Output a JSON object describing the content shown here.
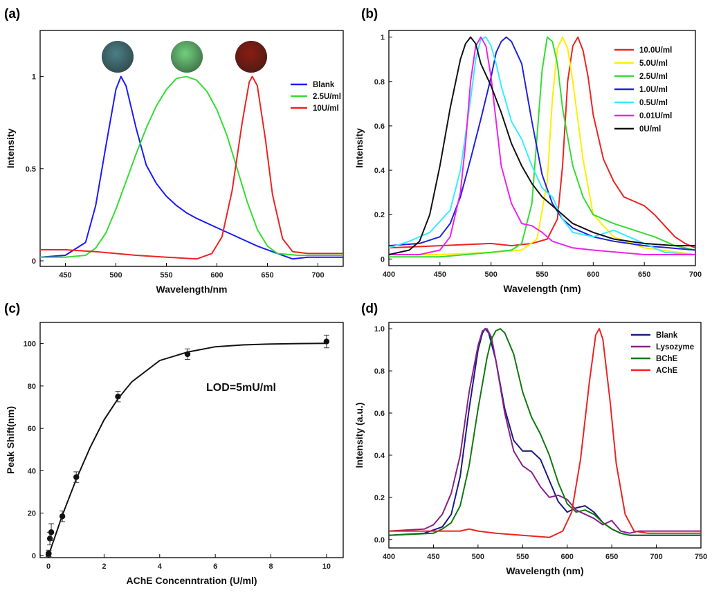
{
  "chart_data": [
    {
      "panel": "(a)",
      "type": "line",
      "xlabel": "Wavelength/nm",
      "ylabel": "Intensity",
      "xlim": [
        425,
        725
      ],
      "ylim": [
        -0.03,
        1.25
      ],
      "xticks": [
        450,
        500,
        550,
        600,
        650,
        700
      ],
      "yticks": [
        0,
        0.5,
        1
      ],
      "ytick_labels": [
        "0",
        "0.5",
        "1"
      ],
      "legend_position": "upper-right",
      "insets": [
        {
          "description": "photo of dark teal sample",
          "color": "#4a7f86"
        },
        {
          "description": "photo of green sample",
          "color": "#6fd07c"
        },
        {
          "description": "photo of dark red sample",
          "color": "#8a1c12"
        }
      ],
      "series": [
        {
          "name": "Blank",
          "color": "#1a1aff",
          "x": [
            425,
            450,
            470,
            480,
            490,
            500,
            505,
            510,
            520,
            530,
            540,
            550,
            560,
            570,
            580,
            600,
            620,
            640,
            660,
            675,
            690,
            710,
            725
          ],
          "y": [
            0.02,
            0.03,
            0.1,
            0.3,
            0.62,
            0.93,
            1.0,
            0.95,
            0.72,
            0.52,
            0.42,
            0.35,
            0.3,
            0.26,
            0.23,
            0.18,
            0.13,
            0.08,
            0.04,
            0.01,
            0.02,
            0.02,
            0.02
          ]
        },
        {
          "name": "2.5U/ml",
          "color": "#33dd33",
          "x": [
            425,
            450,
            470,
            480,
            490,
            500,
            510,
            520,
            530,
            540,
            550,
            560,
            570,
            580,
            590,
            600,
            610,
            620,
            630,
            640,
            650,
            660,
            680,
            700,
            725
          ],
          "y": [
            0.02,
            0.02,
            0.03,
            0.07,
            0.15,
            0.28,
            0.43,
            0.58,
            0.72,
            0.84,
            0.93,
            0.99,
            1.0,
            0.98,
            0.92,
            0.82,
            0.68,
            0.5,
            0.32,
            0.17,
            0.08,
            0.04,
            0.03,
            0.03,
            0.03
          ]
        },
        {
          "name": "10U/ml",
          "color": "#ee2222",
          "x": [
            425,
            450,
            480,
            500,
            520,
            550,
            580,
            595,
            605,
            615,
            625,
            632,
            635,
            640,
            648,
            655,
            665,
            675,
            690,
            710,
            725
          ],
          "y": [
            0.06,
            0.06,
            0.05,
            0.04,
            0.03,
            0.02,
            0.01,
            0.04,
            0.13,
            0.38,
            0.75,
            0.97,
            1.0,
            0.95,
            0.66,
            0.36,
            0.12,
            0.05,
            0.04,
            0.04,
            0.04
          ]
        }
      ]
    },
    {
      "panel": "(b)",
      "type": "line",
      "xlabel": "Wavelength (nm)",
      "ylabel": "Intensity",
      "xlim": [
        400,
        700
      ],
      "ylim": [
        -0.03,
        1.03
      ],
      "xticks": [
        400,
        450,
        500,
        550,
        600,
        650,
        700
      ],
      "yticks": [
        0,
        0.2,
        0.4,
        0.6,
        0.8,
        1
      ],
      "ytick_labels": [
        "0",
        "0.2",
        "0.4",
        "0.6",
        "0.8",
        "1"
      ],
      "legend_position": "upper-right",
      "series": [
        {
          "name": "10.0U/ml",
          "color": "#ee2222",
          "x": [
            400,
            450,
            500,
            520,
            540,
            555,
            565,
            570,
            575,
            580,
            585,
            590,
            595,
            600,
            610,
            620,
            630,
            640,
            650,
            660,
            670,
            680,
            690,
            700
          ],
          "y": [
            0.05,
            0.06,
            0.07,
            0.06,
            0.07,
            0.09,
            0.18,
            0.42,
            0.8,
            0.96,
            1.0,
            0.94,
            0.82,
            0.65,
            0.45,
            0.35,
            0.28,
            0.26,
            0.24,
            0.2,
            0.15,
            0.1,
            0.07,
            0.05
          ]
        },
        {
          "name": "5.0U/ml",
          "color": "#ffee00",
          "x": [
            400,
            450,
            500,
            530,
            545,
            555,
            560,
            565,
            570,
            575,
            580,
            590,
            600,
            620,
            650,
            700
          ],
          "y": [
            0.02,
            0.02,
            0.03,
            0.04,
            0.09,
            0.35,
            0.72,
            0.95,
            1.0,
            0.95,
            0.8,
            0.45,
            0.2,
            0.1,
            0.05,
            0.02
          ]
        },
        {
          "name": "2.5U/ml",
          "color": "#33dd33",
          "x": [
            400,
            450,
            500,
            520,
            530,
            540,
            545,
            550,
            555,
            560,
            565,
            570,
            580,
            590,
            600,
            620,
            640,
            660,
            680,
            700
          ],
          "y": [
            0.01,
            0.01,
            0.03,
            0.04,
            0.07,
            0.25,
            0.55,
            0.85,
            1.0,
            0.98,
            0.88,
            0.68,
            0.42,
            0.28,
            0.2,
            0.16,
            0.13,
            0.1,
            0.06,
            0.04
          ]
        },
        {
          "name": "1.0U/ml",
          "color": "#2020dd",
          "x": [
            400,
            430,
            450,
            460,
            470,
            480,
            490,
            500,
            505,
            510,
            515,
            520,
            530,
            540,
            550,
            560,
            570,
            580,
            600,
            620,
            650,
            700
          ],
          "y": [
            0.06,
            0.07,
            0.1,
            0.16,
            0.28,
            0.45,
            0.63,
            0.82,
            0.93,
            0.98,
            1.0,
            0.98,
            0.88,
            0.62,
            0.38,
            0.25,
            0.18,
            0.14,
            0.1,
            0.08,
            0.06,
            0.04
          ]
        },
        {
          "name": "0.5U/ml",
          "color": "#33eeff",
          "x": [
            400,
            420,
            440,
            460,
            470,
            480,
            485,
            490,
            495,
            500,
            505,
            510,
            520,
            530,
            540,
            550,
            560,
            570,
            580,
            600,
            620,
            650,
            670,
            700
          ],
          "y": [
            0.05,
            0.08,
            0.12,
            0.22,
            0.4,
            0.72,
            0.9,
            0.99,
            1.0,
            0.96,
            0.88,
            0.78,
            0.62,
            0.54,
            0.42,
            0.32,
            0.28,
            0.18,
            0.12,
            0.1,
            0.13,
            0.07,
            0.03,
            0.02
          ]
        },
        {
          "name": "0.01U/ml",
          "color": "#ee22ee",
          "x": [
            400,
            430,
            450,
            460,
            470,
            475,
            480,
            485,
            490,
            495,
            500,
            505,
            510,
            520,
            530,
            540,
            550,
            560,
            580,
            600,
            650,
            700
          ],
          "y": [
            0.02,
            0.02,
            0.04,
            0.1,
            0.3,
            0.52,
            0.8,
            0.96,
            1.0,
            0.96,
            0.82,
            0.62,
            0.42,
            0.25,
            0.16,
            0.15,
            0.12,
            0.08,
            0.05,
            0.04,
            0.02,
            0.02
          ]
        },
        {
          "name": "0U/ml",
          "color": "#111111",
          "x": [
            400,
            420,
            430,
            440,
            450,
            460,
            470,
            475,
            480,
            485,
            490,
            500,
            510,
            520,
            530,
            540,
            550,
            560,
            570,
            580,
            600,
            620,
            650,
            680,
            700
          ],
          "y": [
            0.02,
            0.04,
            0.08,
            0.2,
            0.42,
            0.68,
            0.9,
            0.97,
            1.0,
            0.97,
            0.88,
            0.78,
            0.66,
            0.52,
            0.42,
            0.34,
            0.28,
            0.24,
            0.2,
            0.16,
            0.12,
            0.09,
            0.07,
            0.06,
            0.06
          ]
        }
      ]
    },
    {
      "panel": "(c)",
      "type": "scatter",
      "xlabel": "AChE Concenntration (U/ml)",
      "ylabel": "Peak Shift(nm)",
      "xlim": [
        -0.3,
        10.6
      ],
      "ylim": [
        -1,
        110
      ],
      "xticks": [
        0,
        2,
        4,
        6,
        8,
        10
      ],
      "yticks": [
        0,
        20,
        40,
        60,
        80,
        100
      ],
      "annotation": "LOD=5mU/ml",
      "points": {
        "x": [
          0,
          0.01,
          0.05,
          0.1,
          0.5,
          1,
          2.5,
          5,
          10
        ],
        "y": [
          0.5,
          1,
          8,
          11,
          18.5,
          37,
          75,
          95,
          101
        ],
        "err": [
          1,
          1.5,
          3,
          4,
          2.5,
          2.5,
          2.5,
          2.5,
          3
        ]
      },
      "fit": {
        "x": [
          0,
          0.5,
          1,
          1.5,
          2,
          2.5,
          3,
          4,
          5,
          6,
          7,
          8,
          9,
          10
        ],
        "y": [
          0,
          19,
          36,
          51,
          64,
          74,
          82,
          92,
          96,
          98.5,
          99.4,
          99.8,
          100,
          100.1
        ]
      }
    },
    {
      "panel": "(d)",
      "type": "line",
      "xlabel": "Wavelength (nm)",
      "ylabel": "Intensity (a.u.)",
      "xlim": [
        400,
        750
      ],
      "ylim": [
        -0.04,
        1.03
      ],
      "xticks": [
        400,
        450,
        500,
        550,
        600,
        650,
        700,
        750
      ],
      "yticks": [
        0,
        0.2,
        0.4,
        0.6,
        0.8,
        1.0
      ],
      "ytick_labels": [
        "0.0",
        "0.2",
        "0.4",
        "0.6",
        "0.8",
        "1.0"
      ],
      "legend_position": "upper-right",
      "series": [
        {
          "name": "Blank",
          "color": "#1a1a80",
          "x": [
            400,
            440,
            460,
            470,
            480,
            490,
            500,
            505,
            508,
            512,
            520,
            530,
            540,
            550,
            560,
            570,
            580,
            590,
            600,
            610,
            620,
            630,
            640,
            650,
            660,
            670,
            680,
            700,
            720,
            750
          ],
          "y": [
            0.02,
            0.03,
            0.06,
            0.12,
            0.3,
            0.62,
            0.9,
            0.98,
            1.0,
            0.98,
            0.85,
            0.62,
            0.47,
            0.42,
            0.42,
            0.38,
            0.28,
            0.18,
            0.13,
            0.15,
            0.16,
            0.13,
            0.08,
            0.05,
            0.03,
            0.02,
            0.02,
            0.02,
            0.02,
            0.02
          ]
        },
        {
          "name": "Lysozyme",
          "color": "#882288",
          "x": [
            400,
            440,
            450,
            460,
            470,
            480,
            490,
            500,
            505,
            510,
            515,
            520,
            530,
            540,
            550,
            560,
            570,
            580,
            590,
            600,
            610,
            620,
            630,
            640,
            650,
            660,
            670,
            680,
            700,
            720,
            750
          ],
          "y": [
            0.04,
            0.05,
            0.07,
            0.12,
            0.22,
            0.4,
            0.7,
            0.92,
            0.99,
            1.0,
            0.96,
            0.85,
            0.6,
            0.42,
            0.35,
            0.32,
            0.25,
            0.2,
            0.21,
            0.19,
            0.14,
            0.12,
            0.1,
            0.07,
            0.09,
            0.04,
            0.03,
            0.04,
            0.04,
            0.04,
            0.04
          ]
        },
        {
          "name": "BChE",
          "color": "#117711",
          "x": [
            400,
            450,
            460,
            470,
            480,
            490,
            500,
            510,
            515,
            520,
            525,
            530,
            540,
            550,
            560,
            570,
            580,
            590,
            600,
            610,
            620,
            630,
            640,
            650,
            660,
            670,
            680,
            700,
            720,
            750
          ],
          "y": [
            0.02,
            0.03,
            0.05,
            0.08,
            0.16,
            0.35,
            0.62,
            0.86,
            0.95,
            0.99,
            1.0,
            0.98,
            0.88,
            0.7,
            0.58,
            0.5,
            0.4,
            0.27,
            0.17,
            0.13,
            0.14,
            0.12,
            0.08,
            0.05,
            0.03,
            0.02,
            0.02,
            0.02,
            0.02,
            0.02
          ]
        },
        {
          "name": "AChE",
          "color": "#ee2222",
          "x": [
            400,
            440,
            460,
            480,
            490,
            500,
            520,
            550,
            580,
            595,
            605,
            615,
            625,
            632,
            636,
            640,
            648,
            655,
            665,
            675,
            690,
            710,
            750
          ],
          "y": [
            0.04,
            0.04,
            0.04,
            0.04,
            0.05,
            0.04,
            0.03,
            0.02,
            0.01,
            0.04,
            0.13,
            0.38,
            0.75,
            0.97,
            1.0,
            0.95,
            0.66,
            0.36,
            0.12,
            0.04,
            0.03,
            0.03,
            0.03
          ]
        }
      ]
    }
  ]
}
